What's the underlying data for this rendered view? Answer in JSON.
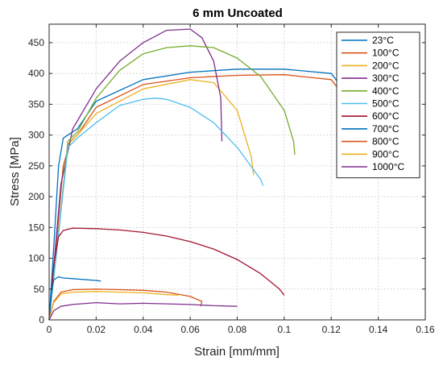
{
  "chart_data": {
    "type": "line",
    "title": "6 mm Uncoated",
    "xlabel": "Strain [mm/mm]",
    "ylabel": "Stress [MPa]",
    "xlim": [
      0,
      0.16
    ],
    "ylim": [
      0,
      480
    ],
    "xticks": [
      0,
      0.02,
      0.04,
      0.06,
      0.08,
      0.1,
      0.12,
      0.14,
      0.16
    ],
    "xtick_labels": [
      "0",
      "0.02",
      "0.04",
      "0.06",
      "0.08",
      "0.1",
      "0.12",
      "0.14",
      "0.16"
    ],
    "yticks": [
      0,
      50,
      100,
      150,
      200,
      250,
      300,
      350,
      400,
      450
    ],
    "ytick_labels": [
      "0",
      "50",
      "100",
      "150",
      "200",
      "250",
      "300",
      "350",
      "400",
      "450"
    ],
    "grid": true,
    "legend_position": "top-right",
    "series": [
      {
        "name": "23°C",
        "color": "#0072BD",
        "x": [
          0,
          0.002,
          0.004,
          0.006,
          0.008,
          0.012,
          0.02,
          0.04,
          0.06,
          0.08,
          0.1,
          0.12,
          0.13,
          0.135
        ],
        "y": [
          0,
          120,
          250,
          295,
          300,
          310,
          355,
          390,
          402,
          407,
          407,
          400,
          350,
          250
        ]
      },
      {
        "name": "100°C",
        "color": "#D95319",
        "x": [
          0,
          0.003,
          0.006,
          0.009,
          0.012,
          0.02,
          0.04,
          0.06,
          0.08,
          0.1,
          0.12,
          0.13,
          0.136
        ],
        "y": [
          0,
          120,
          250,
          290,
          300,
          345,
          382,
          393,
          397,
          398,
          390,
          340,
          240
        ]
      },
      {
        "name": "200°C",
        "color": "#EDB120",
        "x": [
          0,
          0.004,
          0.008,
          0.012,
          0.02,
          0.04,
          0.06,
          0.07,
          0.08,
          0.086,
          0.087
        ],
        "y": [
          0,
          140,
          285,
          300,
          335,
          375,
          390,
          385,
          340,
          265,
          235
        ]
      },
      {
        "name": "300°C",
        "color": "#7E2F8E",
        "x": [
          0,
          0.005,
          0.01,
          0.02,
          0.03,
          0.04,
          0.05,
          0.06,
          0.065,
          0.07,
          0.073,
          0.0735
        ],
        "y": [
          0,
          220,
          310,
          375,
          420,
          450,
          470,
          472,
          458,
          420,
          360,
          290
        ]
      },
      {
        "name": "400°C",
        "color": "#77AC30",
        "x": [
          0,
          0.004,
          0.008,
          0.012,
          0.02,
          0.03,
          0.04,
          0.05,
          0.06,
          0.07,
          0.08,
          0.09,
          0.1,
          0.104,
          0.1045
        ],
        "y": [
          0,
          140,
          290,
          305,
          360,
          405,
          432,
          442,
          445,
          442,
          425,
          395,
          340,
          290,
          268
        ]
      },
      {
        "name": "500°C",
        "color": "#4DBEEE",
        "x": [
          0,
          0.004,
          0.008,
          0.012,
          0.02,
          0.03,
          0.04,
          0.045,
          0.05,
          0.06,
          0.07,
          0.08,
          0.09,
          0.091
        ],
        "y": [
          0,
          140,
          280,
          295,
          320,
          348,
          358,
          360,
          358,
          345,
          320,
          280,
          228,
          218
        ]
      },
      {
        "name": "600°C",
        "color": "#A2142F",
        "x": [
          0,
          0.002,
          0.004,
          0.006,
          0.01,
          0.02,
          0.03,
          0.04,
          0.05,
          0.06,
          0.07,
          0.08,
          0.09,
          0.098,
          0.1
        ],
        "y": [
          0,
          90,
          135,
          145,
          149,
          148,
          146,
          142,
          136,
          127,
          115,
          98,
          75,
          50,
          40
        ]
      },
      {
        "name": "700°C",
        "color": "#0072BD",
        "x": [
          0,
          0.001,
          0.002,
          0.004,
          0.006,
          0.01,
          0.02,
          0.022
        ],
        "y": [
          0,
          45,
          65,
          70,
          68,
          67,
          64,
          63
        ]
      },
      {
        "name": "800°C",
        "color": "#D95319",
        "x": [
          0,
          0.002,
          0.005,
          0.01,
          0.02,
          0.03,
          0.04,
          0.05,
          0.06,
          0.065,
          0.0645
        ],
        "y": [
          0,
          30,
          45,
          49,
          50,
          49,
          48,
          45,
          38,
          30,
          22
        ]
      },
      {
        "name": "900°C",
        "color": "#EDB120",
        "x": [
          0,
          0.002,
          0.005,
          0.01,
          0.02,
          0.03,
          0.04,
          0.05,
          0.055
        ],
        "y": [
          0,
          28,
          42,
          45,
          46,
          45,
          44,
          41,
          40
        ]
      },
      {
        "name": "1000°C",
        "color": "#7E2F8E",
        "x": [
          0,
          0.002,
          0.005,
          0.01,
          0.02,
          0.03,
          0.04,
          0.05,
          0.06,
          0.07,
          0.08
        ],
        "y": [
          0,
          15,
          22,
          25,
          28,
          26,
          27,
          26,
          25,
          23,
          22
        ]
      }
    ]
  }
}
